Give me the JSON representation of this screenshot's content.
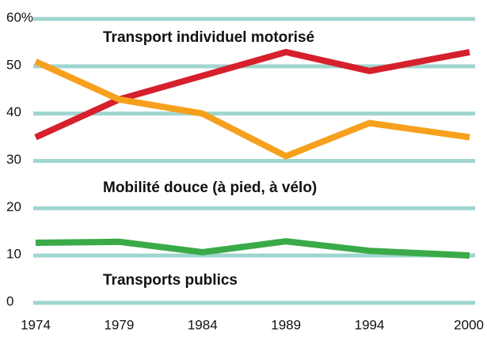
{
  "chart_data": {
    "type": "line",
    "x": [
      1974,
      1979,
      1984,
      1989,
      1994,
      2000
    ],
    "xlim": [
      1974,
      2000
    ],
    "xticks": [
      1974,
      1979,
      1984,
      1989,
      1994,
      2000
    ],
    "ylim": [
      0,
      60
    ],
    "yticks": [
      0,
      10,
      20,
      30,
      40,
      50,
      {
        "value": 60,
        "label": "60%"
      }
    ],
    "grid": true,
    "grid_color": "#9fd6cf",
    "series": [
      {
        "name": "Transport individuel motorisé",
        "color": "#d6202c",
        "values": [
          35,
          43,
          48,
          53,
          49,
          53
        ]
      },
      {
        "name": "Mobilité douce (à pied, à vélo)",
        "color": "#f7a01d",
        "values": [
          51,
          43,
          40,
          31,
          38,
          35
        ]
      },
      {
        "name": "Transports publics",
        "color": "#3aaa48",
        "values": [
          12.7,
          12.9,
          10.7,
          13,
          11,
          10
        ]
      }
    ]
  }
}
